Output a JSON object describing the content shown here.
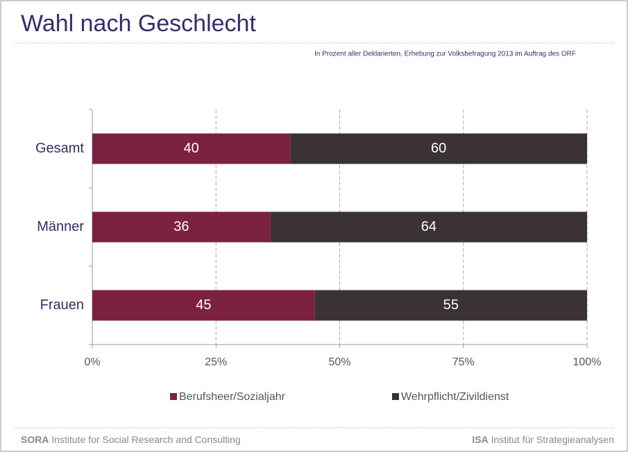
{
  "chart_data": {
    "type": "stacked_barh",
    "title": "Wahl nach Geschlecht",
    "subtitle": "In Prozent aller Deklarierten, Erhebung zur Volksbefragung 2013 im Auftrag des ORF",
    "categories": [
      "Gesamt",
      "Männer",
      "Frauen"
    ],
    "series": [
      {
        "name": "Berufsheer/Sozialjahr",
        "color": "#7b2142",
        "values": [
          40,
          36,
          45
        ]
      },
      {
        "name": "Wehrpflicht/Zivildienst",
        "color": "#3b3233",
        "values": [
          60,
          64,
          55
        ]
      }
    ],
    "xlim": [
      0,
      100
    ],
    "xticks": [
      {
        "value": 0,
        "label": "0%"
      },
      {
        "value": 25,
        "label": "25%"
      },
      {
        "value": 50,
        "label": "50%"
      },
      {
        "value": 75,
        "label": "75%"
      },
      {
        "value": 100,
        "label": "100%"
      }
    ],
    "grid": true,
    "legend": "bottom"
  },
  "footer": {
    "left_bold": "SORA",
    "left": "Institute for Social Research and Consulting",
    "right_bold": "ISA",
    "right": "Institut für Strategieanalysen"
  }
}
